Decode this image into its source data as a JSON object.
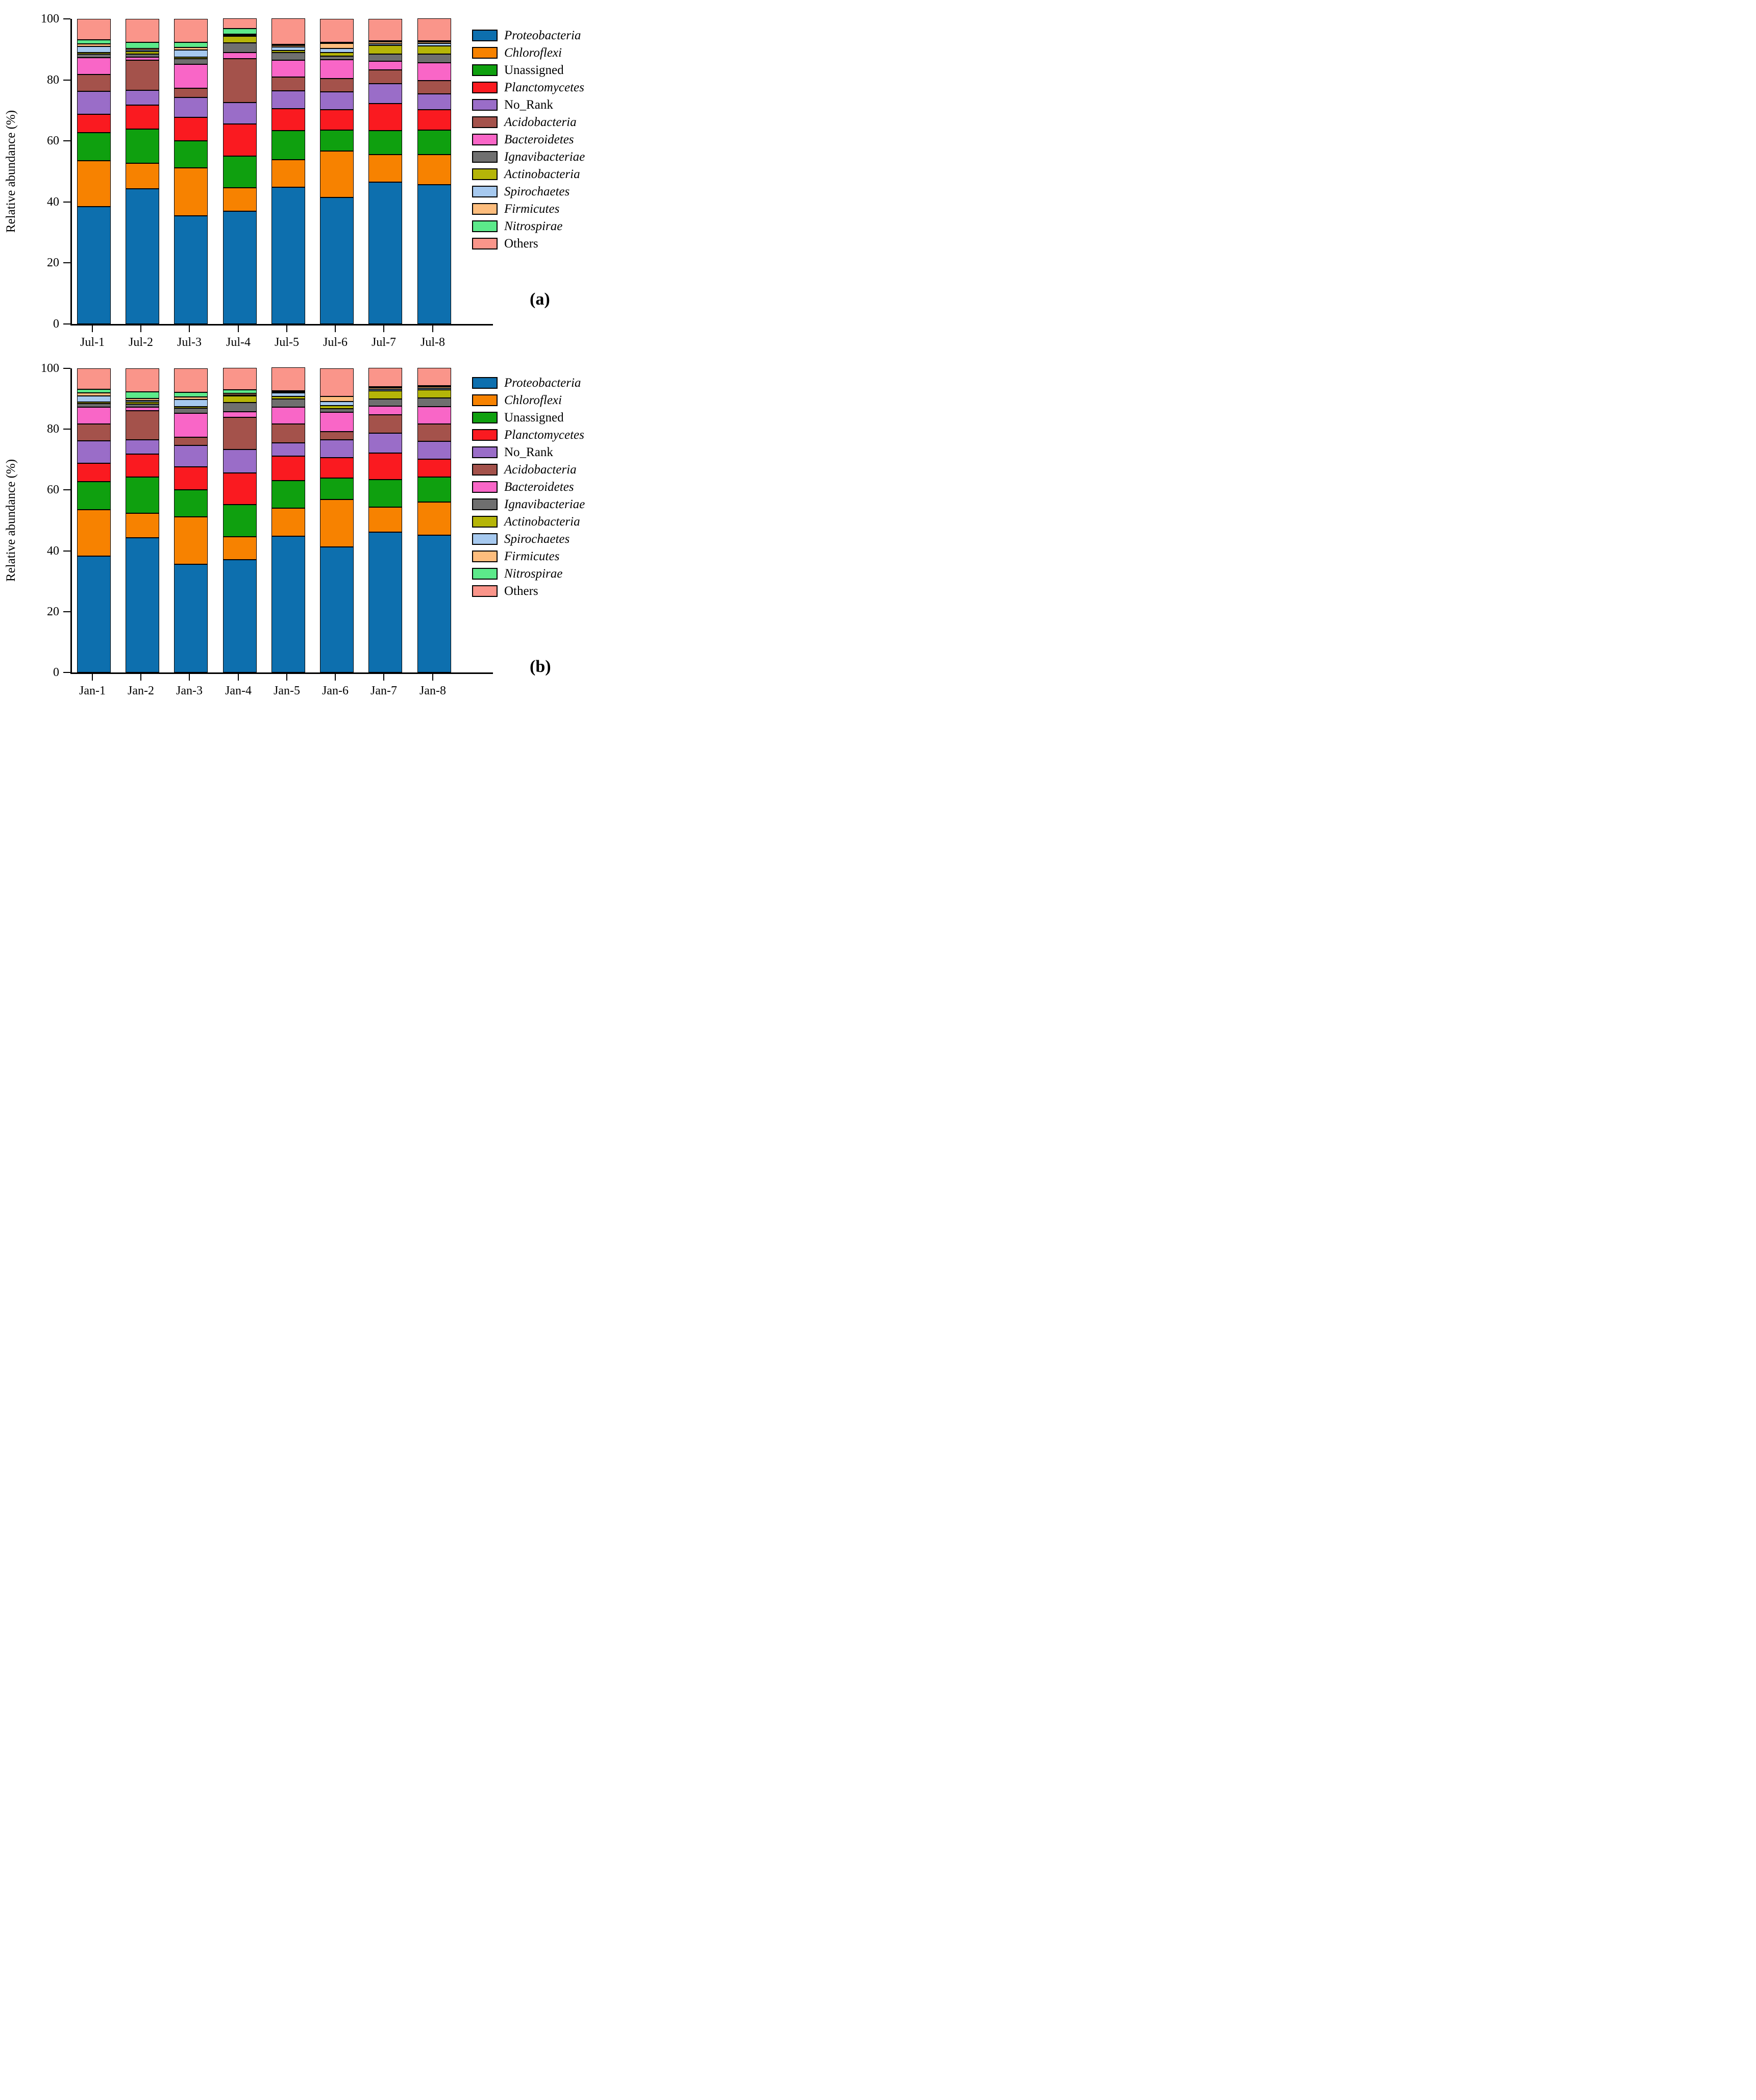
{
  "figure": {
    "background": "#ffffff"
  },
  "axis": {
    "ylabel": "Relative abundance (%)"
  },
  "panels": {
    "a": {
      "letter": "(a)"
    },
    "b": {
      "letter": "(b)"
    }
  },
  "chart_data": [
    {
      "type": "bar",
      "stacked": true,
      "panel_label": "(a)",
      "ylabel": "Relative abundance (%)",
      "ylim": [
        0,
        100
      ],
      "yticks": [
        0,
        20,
        40,
        60,
        80,
        100
      ],
      "grid": false,
      "legend_position": "right",
      "categories": [
        "Jul-1",
        "Jul-2",
        "Jul-3",
        "Jul-4",
        "Jul-5",
        "Jul-6",
        "Jul-7",
        "Jul-8"
      ],
      "series": [
        {
          "name": "Proteobacteria",
          "italic": true,
          "color": "#0d6fae",
          "values": [
            38.5,
            44.4,
            35.5,
            37.0,
            44.8,
            41.5,
            46.5,
            45.6
          ]
        },
        {
          "name": "Chloroflexi",
          "italic": true,
          "color": "#f78200",
          "values": [
            15.0,
            8.3,
            15.7,
            7.6,
            9.0,
            15.2,
            9.1,
            10.0
          ]
        },
        {
          "name": "Unassigned",
          "italic": false,
          "color": "#0fa00f",
          "values": [
            9.2,
            11.2,
            8.9,
            10.5,
            9.6,
            6.8,
            7.8,
            7.9
          ]
        },
        {
          "name": "Planctomycetes",
          "italic": true,
          "color": "#fa1a20",
          "values": [
            6.0,
            7.9,
            7.6,
            10.5,
            7.2,
            6.7,
            8.9,
            6.7
          ]
        },
        {
          "name": "No_Rank",
          "italic": false,
          "color": "#9a6dc8",
          "values": [
            7.6,
            4.8,
            6.6,
            7.0,
            5.9,
            5.9,
            6.4,
            5.3
          ]
        },
        {
          "name": "Acidobacteria",
          "italic": true,
          "color": "#a4524b",
          "values": [
            5.4,
            9.8,
            2.9,
            14.3,
            4.5,
            4.4,
            4.6,
            4.2
          ]
        },
        {
          "name": "Bacteroidetes",
          "italic": true,
          "color": "#f966c7",
          "values": [
            5.6,
            1.1,
            8.0,
            2.0,
            5.5,
            6.2,
            2.9,
            6.0
          ]
        },
        {
          "name": "Ignavibacteriae",
          "italic": true,
          "color": "#6f6f6f",
          "values": [
            1.2,
            1.0,
            1.7,
            3.2,
            2.5,
            1.1,
            2.3,
            2.8
          ]
        },
        {
          "name": "Actinobacteria",
          "italic": true,
          "color": "#b5b508",
          "values": [
            0.5,
            0.8,
            0.6,
            2.3,
            0.7,
            1.2,
            2.8,
            2.6
          ]
        },
        {
          "name": "Spirochaetes",
          "italic": true,
          "color": "#a6c9ef",
          "values": [
            2.0,
            0.5,
            2.3,
            0.2,
            1.2,
            1.3,
            0.6,
            0.9
          ]
        },
        {
          "name": "Firmicutes",
          "italic": true,
          "color": "#fdbd7d",
          "values": [
            0.9,
            0.6,
            0.9,
            0.3,
            0.4,
            1.7,
            0.6,
            0.5
          ]
        },
        {
          "name": "Nitrospirae",
          "italic": true,
          "color": "#5ce98a",
          "values": [
            1.3,
            2.0,
            1.7,
            1.7,
            0.1,
            0.4,
            0.4,
            0.2
          ]
        },
        {
          "name": "Others",
          "italic": false,
          "color": "#fa958a",
          "values": [
            6.8,
            7.6,
            7.6,
            3.4,
            8.6,
            7.6,
            7.1,
            7.3
          ]
        }
      ]
    },
    {
      "type": "bar",
      "stacked": true,
      "panel_label": "(b)",
      "ylabel": "Relative abundance (%)",
      "ylim": [
        0,
        100
      ],
      "yticks": [
        0,
        20,
        40,
        60,
        80,
        100
      ],
      "grid": false,
      "legend_position": "right",
      "categories": [
        "Jan-1",
        "Jan-2",
        "Jan-3",
        "Jan-4",
        "Jan-5",
        "Jan-6",
        "Jan-7",
        "Jan-8"
      ],
      "series": [
        {
          "name": "Proteobacteria",
          "italic": true,
          "color": "#0d6fae",
          "values": [
            38.3,
            44.3,
            35.6,
            37.0,
            44.8,
            41.3,
            46.2,
            45.1
          ]
        },
        {
          "name": "Chloroflexi",
          "italic": true,
          "color": "#f78200",
          "values": [
            15.3,
            8.0,
            15.6,
            7.6,
            9.3,
            15.6,
            8.2,
            10.9
          ]
        },
        {
          "name": "Unassigned",
          "italic": false,
          "color": "#0fa00f",
          "values": [
            9.1,
            11.9,
            8.9,
            10.6,
            9.0,
            7.1,
            9.1,
            8.2
          ]
        },
        {
          "name": "Planctomycetes",
          "italic": true,
          "color": "#fa1a20",
          "values": [
            6.1,
            7.7,
            7.5,
            10.4,
            8.0,
            6.6,
            8.7,
            6.0
          ]
        },
        {
          "name": "No_Rank",
          "italic": false,
          "color": "#9a6dc8",
          "values": [
            7.4,
            4.6,
            7.0,
            7.8,
            4.4,
            6.0,
            6.5,
            5.9
          ]
        },
        {
          "name": "Acidobacteria",
          "italic": true,
          "color": "#a4524b",
          "values": [
            5.6,
            9.6,
            2.8,
            10.5,
            6.2,
            2.6,
            6.1,
            5.6
          ]
        },
        {
          "name": "Bacteroidetes",
          "italic": true,
          "color": "#f966c7",
          "values": [
            5.4,
            1.1,
            7.8,
            1.8,
            5.6,
            6.3,
            2.8,
            5.8
          ]
        },
        {
          "name": "Ignavibacteriae",
          "italic": true,
          "color": "#6f6f6f",
          "values": [
            1.2,
            1.0,
            1.7,
            3.0,
            2.7,
            1.2,
            2.3,
            2.8
          ]
        },
        {
          "name": "Actinobacteria",
          "italic": true,
          "color": "#b5b508",
          "values": [
            0.5,
            0.8,
            0.6,
            2.3,
            0.75,
            1.1,
            2.7,
            2.6
          ]
        },
        {
          "name": "Spirochaetes",
          "italic": true,
          "color": "#a6c9ef",
          "values": [
            2.1,
            0.5,
            2.2,
            0.2,
            1.2,
            1.3,
            0.6,
            0.6
          ]
        },
        {
          "name": "Firmicutes",
          "italic": true,
          "color": "#fdbd7d",
          "values": [
            0.9,
            0.6,
            0.9,
            0.5,
            0.4,
            1.7,
            0.5,
            0.4
          ]
        },
        {
          "name": "Nitrospirae",
          "italic": true,
          "color": "#5ce98a",
          "values": [
            1.3,
            2.2,
            1.5,
            1.1,
            0.05,
            0.0,
            0.2,
            0.1
          ]
        },
        {
          "name": "Others",
          "italic": false,
          "color": "#fa958a",
          "values": [
            6.8,
            7.7,
            7.9,
            7.2,
            7.6,
            9.2,
            6.1,
            6.0
          ]
        }
      ]
    }
  ]
}
